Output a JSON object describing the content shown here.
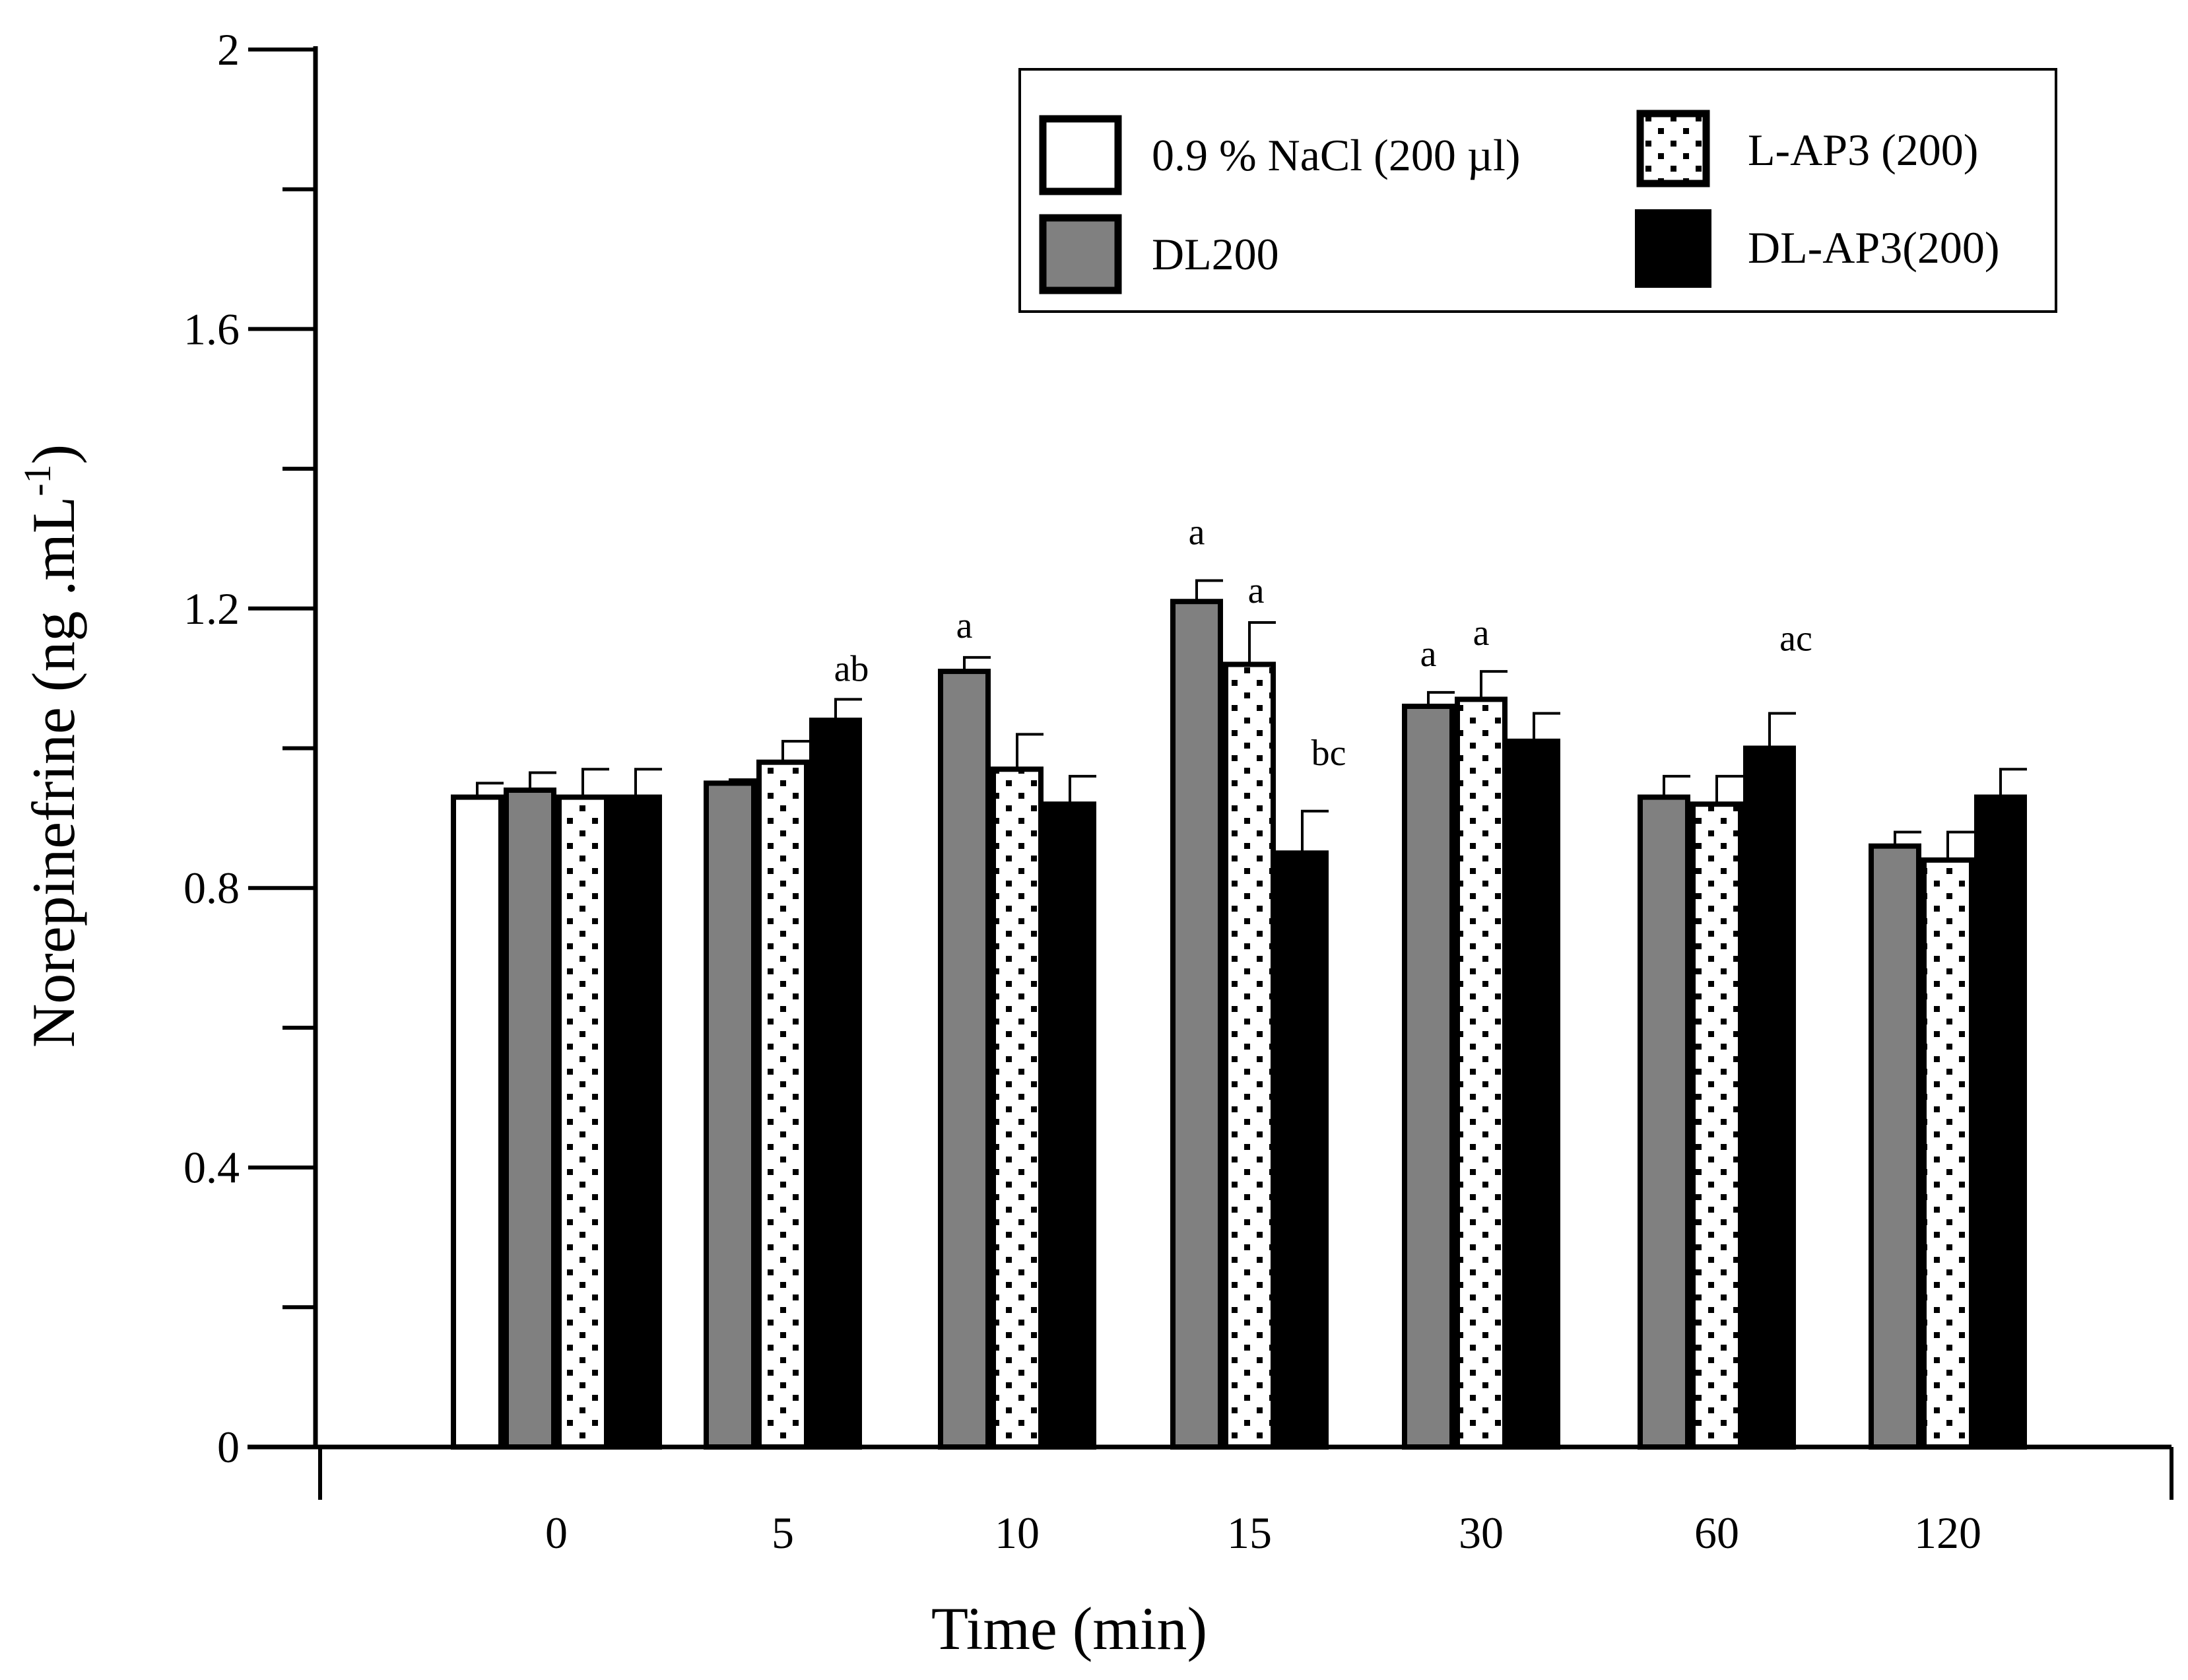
{
  "chart_data": {
    "type": "bar",
    "title": "",
    "xlabel": "Time (min)",
    "ylabel": "Norepinefrine (ng .mL",
    "ylabel_superscript": "-1",
    "ylabel_close": ")",
    "ylim": [
      0,
      2
    ],
    "yticks": [
      0,
      0.4,
      0.8,
      1.2,
      1.6,
      2
    ],
    "ytick_labels": [
      "0",
      "0.4",
      "0.8",
      "1.2",
      "1.6",
      "2"
    ],
    "categories": [
      "0",
      "5",
      "10",
      "15",
      "30",
      "60",
      "120"
    ],
    "series": [
      {
        "name": "0.9 % NaCl (200 µl)",
        "style": "white",
        "values": [
          0.93,
          null,
          null,
          null,
          null,
          null,
          null
        ],
        "errors": [
          0.02,
          null,
          null,
          null,
          null,
          null,
          null
        ]
      },
      {
        "name": "DL200",
        "style": "gray",
        "values": [
          0.94,
          0.95,
          1.11,
          1.21,
          1.06,
          0.93,
          0.86
        ],
        "errors": [
          0.025,
          0.005,
          0.02,
          0.03,
          0.02,
          0.03,
          0.02
        ]
      },
      {
        "name": "L-AP3 (200)",
        "style": "dotted",
        "values": [
          0.93,
          0.98,
          0.97,
          1.12,
          1.07,
          0.92,
          0.84
        ],
        "errors": [
          0.04,
          0.03,
          0.05,
          0.06,
          0.04,
          0.04,
          0.04
        ]
      },
      {
        "name": "DL-AP3(200)",
        "style": "black",
        "values": [
          0.93,
          1.04,
          0.92,
          0.85,
          1.01,
          1.0,
          0.93
        ],
        "errors": [
          0.04,
          0.03,
          0.04,
          0.06,
          0.04,
          0.05,
          0.04
        ]
      }
    ],
    "annotations": [
      {
        "category": "5",
        "series": 3,
        "text": "ab"
      },
      {
        "category": "10",
        "series": 1,
        "text": "a"
      },
      {
        "category": "15",
        "series": 1,
        "text": "a"
      },
      {
        "category": "15",
        "series": 2,
        "text": "a"
      },
      {
        "category": "15",
        "series": 3,
        "text": "bc"
      },
      {
        "category": "30",
        "series": 1,
        "text": "a"
      },
      {
        "category": "30",
        "series": 2,
        "text": "a"
      },
      {
        "category": "60",
        "series": 3,
        "text": "ac"
      }
    ],
    "legend": {
      "placement": "top-right",
      "entries": [
        "0.9 % NaCl (200 µl)",
        "L-AP3 (200)",
        "DL200",
        "DL-AP3(200)"
      ]
    },
    "colors": {
      "white": "#ffffff",
      "gray": "#808080",
      "dotted_bg": "#ffffff",
      "dotted_dot": "#000000",
      "black": "#000000",
      "axis": "#000000"
    }
  }
}
